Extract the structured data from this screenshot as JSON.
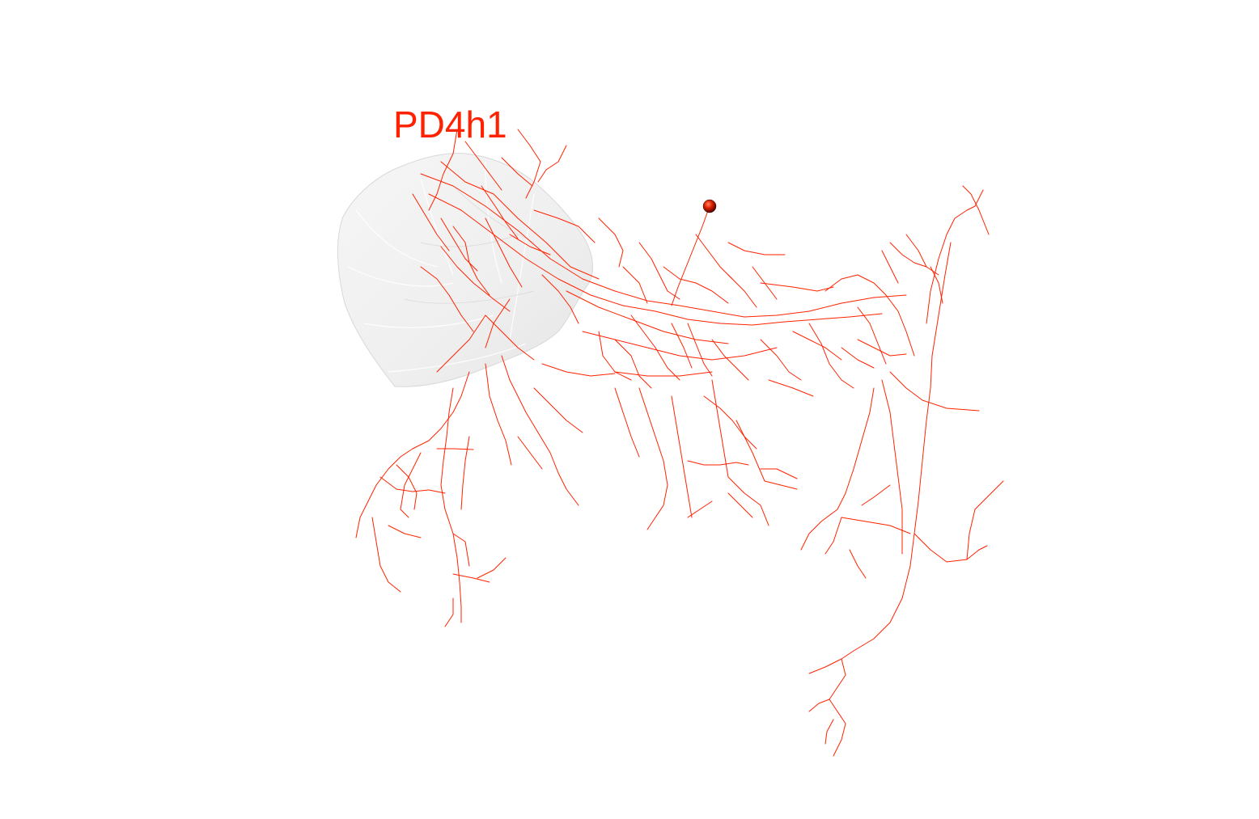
{
  "neuron": {
    "label": "PD4h1",
    "color": "#ff2200"
  },
  "neuropil": {
    "color": "#e8e8e8"
  },
  "background": "#ffffff"
}
